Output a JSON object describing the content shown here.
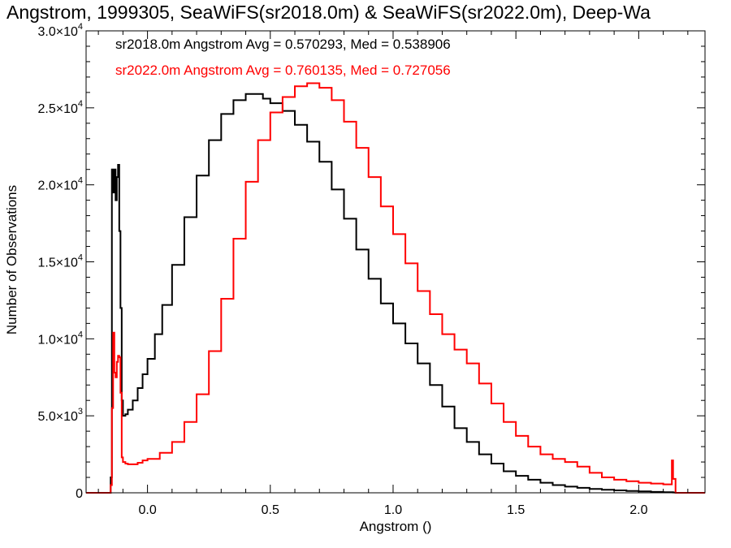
{
  "chart_data": {
    "type": "line",
    "title": "Angstrom, 1999305, SeaWiFS(sr2018.0m) & SeaWiFS(sr2022.0m), Deep-Wa",
    "xlabel": "Angstrom ()",
    "ylabel": "Number of Observations",
    "xlim": [
      -0.25,
      2.27
    ],
    "ylim": [
      0,
      30000
    ],
    "x_ticks": [
      {
        "value": 0.0,
        "label": "0.0"
      },
      {
        "value": 0.5,
        "label": "0.5"
      },
      {
        "value": 1.0,
        "label": "1.0"
      },
      {
        "value": 1.5,
        "label": "1.5"
      },
      {
        "value": 2.0,
        "label": "2.0"
      }
    ],
    "y_ticks": [
      {
        "value": 0,
        "mantissa": "0",
        "exponent": ""
      },
      {
        "value": 5000,
        "mantissa": "5.0×10",
        "exponent": "3"
      },
      {
        "value": 10000,
        "mantissa": "1.0×10",
        "exponent": "4"
      },
      {
        "value": 15000,
        "mantissa": "1.5×10",
        "exponent": "4"
      },
      {
        "value": 20000,
        "mantissa": "2.0×10",
        "exponent": "4"
      },
      {
        "value": 25000,
        "mantissa": "2.5×10",
        "exponent": "4"
      },
      {
        "value": 30000,
        "mantissa": "3.0×10",
        "exponent": "4"
      }
    ],
    "grid": false,
    "line_style": "step",
    "series": [
      {
        "name": "sr2018.0m",
        "color": "#000000",
        "stat_text": "sr2018.0m Angstrom Avg = 0.570293, Med = 0.538906",
        "x": [
          -0.25,
          -0.16,
          -0.15,
          -0.145,
          -0.14,
          -0.135,
          -0.13,
          -0.125,
          -0.12,
          -0.115,
          -0.11,
          -0.105,
          -0.1,
          -0.09,
          -0.08,
          -0.06,
          -0.04,
          -0.02,
          0.0,
          0.03,
          0.06,
          0.1,
          0.15,
          0.2,
          0.25,
          0.3,
          0.35,
          0.4,
          0.43,
          0.47,
          0.5,
          0.55,
          0.6,
          0.65,
          0.7,
          0.75,
          0.8,
          0.85,
          0.9,
          0.95,
          1.0,
          1.05,
          1.1,
          1.15,
          1.2,
          1.25,
          1.3,
          1.35,
          1.4,
          1.45,
          1.5,
          1.55,
          1.6,
          1.65,
          1.7,
          1.75,
          1.8,
          1.85,
          1.9,
          1.95,
          2.0,
          2.05,
          2.1,
          2.14,
          2.15,
          2.27
        ],
        "y": [
          0,
          0,
          1000,
          21000,
          19500,
          21000,
          19000,
          20500,
          21300,
          17000,
          12000,
          6000,
          5000,
          5100,
          5400,
          6000,
          6800,
          7700,
          8700,
          10300,
          12200,
          14800,
          17900,
          20600,
          22900,
          24600,
          25500,
          25900,
          25900,
          25600,
          25300,
          24800,
          23900,
          22800,
          21500,
          19700,
          17800,
          15800,
          13900,
          12300,
          11000,
          9700,
          8400,
          7000,
          5600,
          4200,
          3300,
          2500,
          1900,
          1400,
          1100,
          850,
          650,
          500,
          400,
          320,
          250,
          200,
          160,
          120,
          90,
          60,
          40,
          20,
          0,
          0
        ]
      },
      {
        "name": "sr2022.0m",
        "color": "#ff0000",
        "stat_text": "sr2022.0m Angstrom Avg = 0.760135, Med = 0.727056",
        "x": [
          -0.25,
          -0.16,
          -0.15,
          -0.145,
          -0.14,
          -0.135,
          -0.13,
          -0.125,
          -0.12,
          -0.115,
          -0.11,
          -0.105,
          -0.1,
          -0.09,
          -0.08,
          -0.06,
          -0.04,
          -0.02,
          0.0,
          0.05,
          0.1,
          0.15,
          0.2,
          0.25,
          0.3,
          0.35,
          0.4,
          0.45,
          0.5,
          0.55,
          0.6,
          0.65,
          0.7,
          0.75,
          0.8,
          0.85,
          0.9,
          0.95,
          1.0,
          1.05,
          1.1,
          1.15,
          1.2,
          1.25,
          1.3,
          1.35,
          1.4,
          1.45,
          1.5,
          1.55,
          1.6,
          1.65,
          1.7,
          1.75,
          1.8,
          1.85,
          1.9,
          1.95,
          2.0,
          2.05,
          2.1,
          2.13,
          2.135,
          2.14,
          2.15,
          2.27
        ],
        "y": [
          0,
          0,
          500,
          5500,
          10400,
          7800,
          7500,
          8500,
          8900,
          8800,
          6500,
          2300,
          2000,
          1900,
          1850,
          1850,
          1950,
          2100,
          2200,
          2600,
          3300,
          4600,
          6400,
          9200,
          12600,
          16500,
          20200,
          22900,
          24700,
          25700,
          26400,
          26600,
          26300,
          25500,
          24100,
          22400,
          20500,
          18600,
          16800,
          14900,
          13100,
          11600,
          10300,
          9300,
          8400,
          7100,
          5800,
          4600,
          3700,
          3000,
          2500,
          2200,
          2000,
          1700,
          1300,
          1000,
          850,
          750,
          650,
          600,
          550,
          550,
          2100,
          900,
          0,
          0
        ]
      }
    ]
  }
}
